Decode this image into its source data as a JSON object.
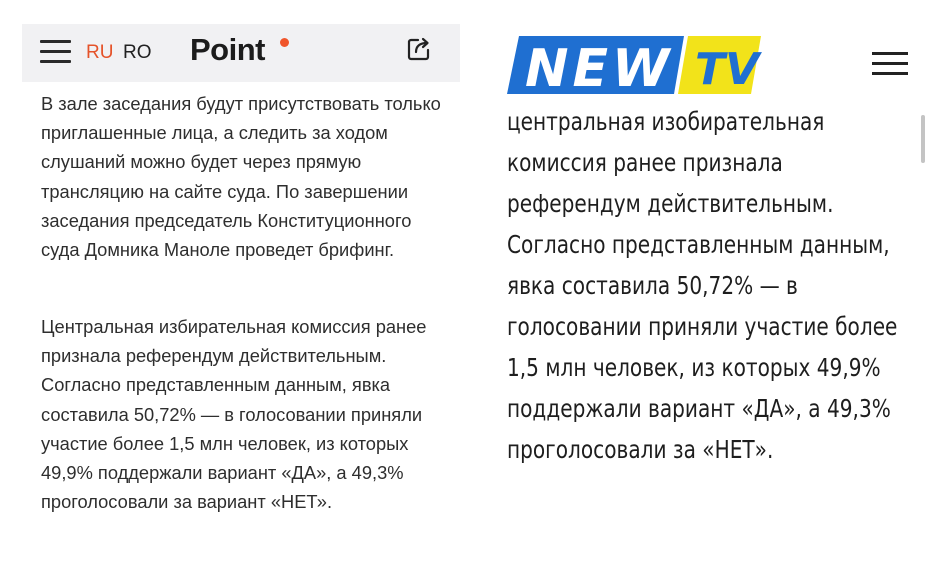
{
  "point": {
    "lang_ru": "RU",
    "lang_ro": "RO",
    "logo": "Point",
    "paragraphs": [
      "В зале заседания будут присутствовать только приглашенные лица, а следить за ходом слушаний можно будет через прямую трансляцию на сайте суда. По завершении заседания председатель Конституционного суда Домника Маноле проведет брифинг.",
      "Центральная избирательная комиссия ранее признала референдум действительным. Согласно представленным данным, явка составила 50,72% — в голосовании приняли участие более 1,5 млн человек, из которых 49,9% поддержали вариант «ДА», а 49,3% проголосовали за вариант «НЕТ»."
    ],
    "colors": {
      "accent": "#e5532a",
      "header_bg": "#f1f1f3"
    },
    "icons": [
      "menu-icon",
      "share-icon"
    ]
  },
  "newtv": {
    "logo_new": "NEW",
    "logo_tv": "TV",
    "paragraph": "центральная изобирательная комиссия ранее признала референдум действительным. Согласно представленным данным, явка составила 50,72% — в голосовании приняли участие более 1,5 млн человек, из которых 49,9% поддержали вариант «ДА», а 49,3% проголосовали за «НЕТ».",
    "colors": {
      "blue": "#1f6fd1",
      "yellow": "#f2e31a"
    },
    "icons": [
      "menu-icon"
    ]
  }
}
